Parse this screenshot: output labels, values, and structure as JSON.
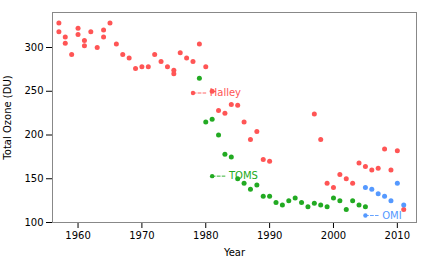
{
  "chart_data": {
    "type": "scatter",
    "xlabel": "Year",
    "ylabel": "Total Ozone (DU)",
    "xlim": [
      1956,
      2013
    ],
    "ylim": [
      100,
      340
    ],
    "xticks": [
      1960,
      1970,
      1980,
      1990,
      2000,
      2010
    ],
    "yticks": [
      100,
      150,
      200,
      250,
      300
    ],
    "series": [
      {
        "name": "Halley",
        "color": "#ff5555",
        "x": [
          1957,
          1957,
          1958,
          1958,
          1959,
          1960,
          1960,
          1961,
          1961,
          1962,
          1963,
          1964,
          1964,
          1965,
          1966,
          1967,
          1968,
          1969,
          1970,
          1971,
          1972,
          1973,
          1974,
          1975,
          1975,
          1976,
          1977,
          1978,
          1979,
          1980,
          1981,
          1982,
          1983,
          1984,
          1985,
          1986,
          1987,
          1988,
          1989,
          1990,
          1997,
          1998,
          1999,
          2000,
          2001,
          2002,
          2003,
          2004,
          2005,
          2006,
          2007,
          2008,
          2009,
          2010,
          2011
        ],
        "values": [
          328,
          318,
          305,
          312,
          292,
          315,
          322,
          308,
          302,
          318,
          300,
          312,
          320,
          328,
          304,
          292,
          288,
          276,
          278,
          278,
          292,
          284,
          278,
          274,
          270,
          294,
          288,
          284,
          304,
          278,
          250,
          228,
          225,
          235,
          234,
          215,
          195,
          204,
          172,
          170,
          224,
          195,
          145,
          140,
          155,
          150,
          145,
          168,
          164,
          160,
          162,
          184,
          160,
          182,
          115
        ]
      },
      {
        "name": "TOMS",
        "color": "#22aa22",
        "x": [
          1979,
          1980,
          1981,
          1982,
          1983,
          1984,
          1985,
          1986,
          1987,
          1988,
          1989,
          1990,
          1991,
          1992,
          1993,
          1994,
          1995,
          1996,
          1997,
          1998,
          1999,
          2000,
          2001,
          2002,
          2003,
          2004,
          2005
        ],
        "values": [
          265,
          215,
          218,
          200,
          178,
          175,
          150,
          145,
          138,
          143,
          130,
          130,
          123,
          120,
          125,
          128,
          123,
          118,
          122,
          120,
          118,
          128,
          125,
          115,
          125,
          120,
          118
        ]
      },
      {
        "name": "OMI",
        "color": "#5599ff",
        "x": [
          2005,
          2006,
          2007,
          2008,
          2009,
          2010,
          2011
        ],
        "values": [
          140,
          138,
          133,
          130,
          125,
          145,
          120
        ]
      }
    ],
    "annotations": [
      {
        "text": "Halley",
        "x": 1978,
        "y": 248,
        "text_x": 1980,
        "color": "#ff5555"
      },
      {
        "text": "TOMS",
        "x": 1981,
        "y": 153,
        "text_x": 1983,
        "color": "#22aa22"
      },
      {
        "text": "OMI",
        "x": 2005,
        "y": 108,
        "text_x": 2007,
        "color": "#5599ff"
      }
    ]
  }
}
